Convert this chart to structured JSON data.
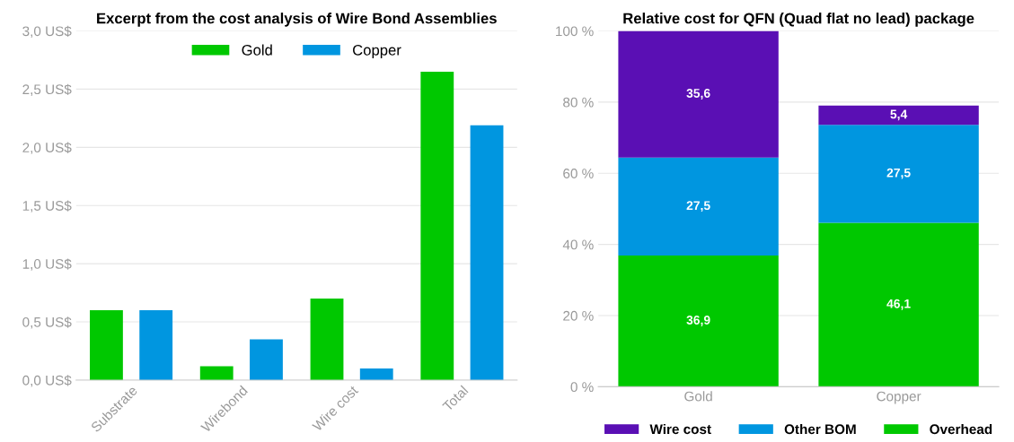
{
  "chart_data": [
    {
      "type": "bar",
      "title": "Excerpt from the cost analysis of Wire Bond Assemblies",
      "categories": [
        "Substrate",
        "Wirebond",
        "Wire cost",
        "Total"
      ],
      "series": [
        {
          "name": "Gold",
          "color": "#00c800",
          "values": [
            0.6,
            0.12,
            0.7,
            2.65
          ]
        },
        {
          "name": "Copper",
          "color": "#0096e0",
          "values": [
            0.6,
            0.35,
            0.1,
            2.19
          ]
        }
      ],
      "ylim": [
        0,
        3
      ],
      "yticks": [
        {
          "value": 0,
          "label": "0,0 US$"
        },
        {
          "value": 0.5,
          "label": "0,5 US$"
        },
        {
          "value": 1,
          "label": "1,0 US$"
        },
        {
          "value": 1.5,
          "label": "1,5 US$"
        },
        {
          "value": 2,
          "label": "2,0 US$"
        },
        {
          "value": 2.5,
          "label": "2,5 US$"
        },
        {
          "value": 3,
          "label": "3,0 US$"
        }
      ],
      "grid": "y",
      "legend": "top"
    },
    {
      "type": "bar",
      "title": "Relative cost for QFN (Quad flat no lead) package",
      "categories": [
        "Gold",
        "Copper"
      ],
      "stacked": true,
      "series": [
        {
          "name": "Overhead",
          "color": "#00c800",
          "values": [
            36.9,
            46.1
          ],
          "value_labels": [
            "36,9",
            "46,1"
          ]
        },
        {
          "name": "Other BOM",
          "color": "#0096e0",
          "values": [
            27.5,
            27.5
          ],
          "value_labels": [
            "27,5",
            "27,5"
          ]
        },
        {
          "name": "Wire cost",
          "color": "#5a0fb4",
          "values": [
            35.6,
            5.4
          ],
          "value_labels": [
            "35,6",
            "5,4"
          ]
        }
      ],
      "ylim": [
        0,
        100
      ],
      "yticks": [
        {
          "value": 0,
          "label": "0 %"
        },
        {
          "value": 20,
          "label": "20 %"
        },
        {
          "value": 40,
          "label": "40 %"
        },
        {
          "value": 60,
          "label": "60 %"
        },
        {
          "value": 80,
          "label": "80 %"
        },
        {
          "value": 100,
          "label": "100 %"
        }
      ],
      "grid": "y",
      "legend": "bottom"
    }
  ]
}
